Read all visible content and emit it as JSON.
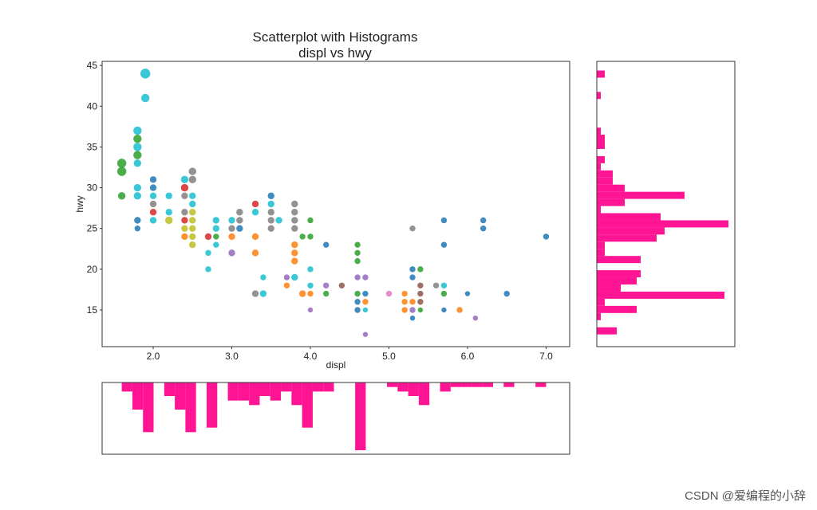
{
  "chart_data": [
    {
      "type": "scatter",
      "title": "Scatterplot with Histograms",
      "subtitle": "displ vs hwy",
      "xlabel": "displ",
      "ylabel": "hwy",
      "xlim": [
        1.35,
        7.3
      ],
      "ylim": [
        10.5,
        45.5
      ],
      "xticks": [
        2.0,
        3.0,
        4.0,
        5.0,
        6.0,
        7.0
      ],
      "yticks": [
        15,
        20,
        25,
        30,
        35,
        40,
        45
      ],
      "grid": false,
      "points": [
        {
          "x": 1.6,
          "y": 33,
          "c": "#2ca02c",
          "s": 9
        },
        {
          "x": 1.6,
          "y": 32,
          "c": "#2ca02c",
          "s": 9
        },
        {
          "x": 1.6,
          "y": 29,
          "c": "#2ca02c",
          "s": 7
        },
        {
          "x": 1.8,
          "y": 37,
          "c": "#17becf",
          "s": 8
        },
        {
          "x": 1.8,
          "y": 36,
          "c": "#2ca02c",
          "s": 8
        },
        {
          "x": 1.8,
          "y": 35,
          "c": "#17becf",
          "s": 8
        },
        {
          "x": 1.8,
          "y": 34,
          "c": "#2ca02c",
          "s": 8
        },
        {
          "x": 1.8,
          "y": 33,
          "c": "#17becf",
          "s": 7
        },
        {
          "x": 1.8,
          "y": 30,
          "c": "#17becf",
          "s": 7
        },
        {
          "x": 1.8,
          "y": 29,
          "c": "#17becf",
          "s": 7
        },
        {
          "x": 1.8,
          "y": 26,
          "c": "#1f77b4",
          "s": 6
        },
        {
          "x": 1.8,
          "y": 25,
          "c": "#1f77b4",
          "s": 5
        },
        {
          "x": 1.9,
          "y": 44,
          "c": "#17becf",
          "s": 10
        },
        {
          "x": 1.9,
          "y": 41,
          "c": "#17becf",
          "s": 8
        },
        {
          "x": 2.0,
          "y": 31,
          "c": "#1f77b4",
          "s": 6
        },
        {
          "x": 2.0,
          "y": 30,
          "c": "#1f77b4",
          "s": 6
        },
        {
          "x": 2.0,
          "y": 29,
          "c": "#17becf",
          "s": 6
        },
        {
          "x": 2.0,
          "y": 28,
          "c": "#7f7f7f",
          "s": 6
        },
        {
          "x": 2.0,
          "y": 27,
          "c": "#d62728",
          "s": 6
        },
        {
          "x": 2.0,
          "y": 26,
          "c": "#17becf",
          "s": 6
        },
        {
          "x": 2.2,
          "y": 29,
          "c": "#17becf",
          "s": 6
        },
        {
          "x": 2.2,
          "y": 27,
          "c": "#17becf",
          "s": 6
        },
        {
          "x": 2.2,
          "y": 26,
          "c": "#bcbd22",
          "s": 7
        },
        {
          "x": 2.4,
          "y": 31,
          "c": "#17becf",
          "s": 7
        },
        {
          "x": 2.4,
          "y": 30,
          "c": "#d62728",
          "s": 7
        },
        {
          "x": 2.4,
          "y": 29,
          "c": "#7f7f7f",
          "s": 6
        },
        {
          "x": 2.4,
          "y": 27,
          "c": "#7f7f7f",
          "s": 6
        },
        {
          "x": 2.4,
          "y": 26,
          "c": "#d62728",
          "s": 6
        },
        {
          "x": 2.4,
          "y": 25,
          "c": "#bcbd22",
          "s": 6
        },
        {
          "x": 2.4,
          "y": 24,
          "c": "#ff7f0e",
          "s": 6
        },
        {
          "x": 2.5,
          "y": 32,
          "c": "#7f7f7f",
          "s": 7
        },
        {
          "x": 2.5,
          "y": 31,
          "c": "#7f7f7f",
          "s": 7
        },
        {
          "x": 2.5,
          "y": 29,
          "c": "#17becf",
          "s": 6
        },
        {
          "x": 2.5,
          "y": 28,
          "c": "#17becf",
          "s": 6
        },
        {
          "x": 2.5,
          "y": 27,
          "c": "#bcbd22",
          "s": 6
        },
        {
          "x": 2.5,
          "y": 26,
          "c": "#bcbd22",
          "s": 6
        },
        {
          "x": 2.5,
          "y": 25,
          "c": "#bcbd22",
          "s": 6
        },
        {
          "x": 2.5,
          "y": 24,
          "c": "#bcbd22",
          "s": 6
        },
        {
          "x": 2.5,
          "y": 23,
          "c": "#bcbd22",
          "s": 6
        },
        {
          "x": 2.7,
          "y": 24,
          "c": "#d62728",
          "s": 6
        },
        {
          "x": 2.7,
          "y": 22,
          "c": "#17becf",
          "s": 5
        },
        {
          "x": 2.7,
          "y": 20,
          "c": "#17becf",
          "s": 5
        },
        {
          "x": 2.8,
          "y": 26,
          "c": "#17becf",
          "s": 6
        },
        {
          "x": 2.8,
          "y": 25,
          "c": "#17becf",
          "s": 6
        },
        {
          "x": 2.8,
          "y": 24,
          "c": "#2ca02c",
          "s": 5
        },
        {
          "x": 2.8,
          "y": 23,
          "c": "#17becf",
          "s": 5
        },
        {
          "x": 3.0,
          "y": 26,
          "c": "#17becf",
          "s": 6
        },
        {
          "x": 3.0,
          "y": 25,
          "c": "#7f7f7f",
          "s": 6
        },
        {
          "x": 3.0,
          "y": 24,
          "c": "#ff7f0e",
          "s": 6
        },
        {
          "x": 3.0,
          "y": 22,
          "c": "#9467bd",
          "s": 6
        },
        {
          "x": 3.1,
          "y": 27,
          "c": "#7f7f7f",
          "s": 6
        },
        {
          "x": 3.1,
          "y": 26,
          "c": "#7f7f7f",
          "s": 6
        },
        {
          "x": 3.1,
          "y": 25,
          "c": "#1f77b4",
          "s": 6
        },
        {
          "x": 3.3,
          "y": 28,
          "c": "#d62728",
          "s": 6
        },
        {
          "x": 3.3,
          "y": 27,
          "c": "#17becf",
          "s": 6
        },
        {
          "x": 3.3,
          "y": 24,
          "c": "#ff7f0e",
          "s": 6
        },
        {
          "x": 3.3,
          "y": 22,
          "c": "#ff7f0e",
          "s": 6
        },
        {
          "x": 3.3,
          "y": 17,
          "c": "#7f7f7f",
          "s": 6
        },
        {
          "x": 3.4,
          "y": 19,
          "c": "#17becf",
          "s": 5
        },
        {
          "x": 3.4,
          "y": 17,
          "c": "#17becf",
          "s": 6
        },
        {
          "x": 3.5,
          "y": 29,
          "c": "#1f77b4",
          "s": 6
        },
        {
          "x": 3.5,
          "y": 28,
          "c": "#17becf",
          "s": 6
        },
        {
          "x": 3.5,
          "y": 27,
          "c": "#7f7f7f",
          "s": 6
        },
        {
          "x": 3.5,
          "y": 26,
          "c": "#7f7f7f",
          "s": 6
        },
        {
          "x": 3.5,
          "y": 25,
          "c": "#7f7f7f",
          "s": 6
        },
        {
          "x": 3.6,
          "y": 26,
          "c": "#17becf",
          "s": 6
        },
        {
          "x": 3.7,
          "y": 19,
          "c": "#9467bd",
          "s": 5
        },
        {
          "x": 3.7,
          "y": 18,
          "c": "#ff7f0e",
          "s": 5
        },
        {
          "x": 3.8,
          "y": 28,
          "c": "#7f7f7f",
          "s": 6
        },
        {
          "x": 3.8,
          "y": 27,
          "c": "#7f7f7f",
          "s": 6
        },
        {
          "x": 3.8,
          "y": 26,
          "c": "#7f7f7f",
          "s": 6
        },
        {
          "x": 3.8,
          "y": 25,
          "c": "#7f7f7f",
          "s": 6
        },
        {
          "x": 3.8,
          "y": 23,
          "c": "#ff7f0e",
          "s": 6
        },
        {
          "x": 3.8,
          "y": 22,
          "c": "#ff7f0e",
          "s": 6
        },
        {
          "x": 3.8,
          "y": 21,
          "c": "#ff7f0e",
          "s": 6
        },
        {
          "x": 3.8,
          "y": 19,
          "c": "#17becf",
          "s": 6
        },
        {
          "x": 3.9,
          "y": 17,
          "c": "#ff7f0e",
          "s": 6
        },
        {
          "x": 3.9,
          "y": 24,
          "c": "#2ca02c",
          "s": 5
        },
        {
          "x": 4.0,
          "y": 26,
          "c": "#2ca02c",
          "s": 5
        },
        {
          "x": 4.0,
          "y": 24,
          "c": "#2ca02c",
          "s": 5
        },
        {
          "x": 4.0,
          "y": 20,
          "c": "#17becf",
          "s": 5
        },
        {
          "x": 4.0,
          "y": 18,
          "c": "#17becf",
          "s": 5
        },
        {
          "x": 4.0,
          "y": 17,
          "c": "#ff7f0e",
          "s": 5
        },
        {
          "x": 4.0,
          "y": 15,
          "c": "#9467bd",
          "s": 4
        },
        {
          "x": 4.2,
          "y": 23,
          "c": "#1f77b4",
          "s": 5
        },
        {
          "x": 4.2,
          "y": 18,
          "c": "#9467bd",
          "s": 5
        },
        {
          "x": 4.2,
          "y": 17,
          "c": "#2ca02c",
          "s": 5
        },
        {
          "x": 4.4,
          "y": 18,
          "c": "#8c564b",
          "s": 5
        },
        {
          "x": 4.6,
          "y": 23,
          "c": "#2ca02c",
          "s": 5
        },
        {
          "x": 4.6,
          "y": 22,
          "c": "#2ca02c",
          "s": 5
        },
        {
          "x": 4.6,
          "y": 21,
          "c": "#2ca02c",
          "s": 5
        },
        {
          "x": 4.6,
          "y": 19,
          "c": "#9467bd",
          "s": 5
        },
        {
          "x": 4.6,
          "y": 17,
          "c": "#2ca02c",
          "s": 5
        },
        {
          "x": 4.6,
          "y": 16,
          "c": "#1f77b4",
          "s": 5
        },
        {
          "x": 4.6,
          "y": 15,
          "c": "#1f77b4",
          "s": 5
        },
        {
          "x": 4.7,
          "y": 19,
          "c": "#9467bd",
          "s": 5
        },
        {
          "x": 4.7,
          "y": 17,
          "c": "#1f77b4",
          "s": 5
        },
        {
          "x": 4.7,
          "y": 16,
          "c": "#ff7f0e",
          "s": 5
        },
        {
          "x": 4.7,
          "y": 15,
          "c": "#17becf",
          "s": 4
        },
        {
          "x": 4.7,
          "y": 12,
          "c": "#9467bd",
          "s": 4
        },
        {
          "x": 5.0,
          "y": 17,
          "c": "#e377c2",
          "s": 5
        },
        {
          "x": 5.2,
          "y": 17,
          "c": "#ff7f0e",
          "s": 5
        },
        {
          "x": 5.2,
          "y": 16,
          "c": "#ff7f0e",
          "s": 5
        },
        {
          "x": 5.2,
          "y": 15,
          "c": "#ff7f0e",
          "s": 5
        },
        {
          "x": 5.3,
          "y": 25,
          "c": "#7f7f7f",
          "s": 5
        },
        {
          "x": 5.3,
          "y": 20,
          "c": "#1f77b4",
          "s": 5
        },
        {
          "x": 5.3,
          "y": 19,
          "c": "#1f77b4",
          "s": 5
        },
        {
          "x": 5.3,
          "y": 16,
          "c": "#ff7f0e",
          "s": 5
        },
        {
          "x": 5.3,
          "y": 15,
          "c": "#9467bd",
          "s": 5
        },
        {
          "x": 5.3,
          "y": 14,
          "c": "#1f77b4",
          "s": 4
        },
        {
          "x": 5.4,
          "y": 20,
          "c": "#2ca02c",
          "s": 5
        },
        {
          "x": 5.4,
          "y": 18,
          "c": "#8c564b",
          "s": 5
        },
        {
          "x": 5.4,
          "y": 17,
          "c": "#8c564b",
          "s": 5
        },
        {
          "x": 5.4,
          "y": 16,
          "c": "#8c564b",
          "s": 5
        },
        {
          "x": 5.4,
          "y": 15,
          "c": "#2ca02c",
          "s": 4
        },
        {
          "x": 5.6,
          "y": 18,
          "c": "#7f7f7f",
          "s": 5
        },
        {
          "x": 5.7,
          "y": 26,
          "c": "#1f77b4",
          "s": 5
        },
        {
          "x": 5.7,
          "y": 23,
          "c": "#1f77b4",
          "s": 5
        },
        {
          "x": 5.7,
          "y": 18,
          "c": "#17becf",
          "s": 5
        },
        {
          "x": 5.7,
          "y": 17,
          "c": "#2ca02c",
          "s": 5
        },
        {
          "x": 5.7,
          "y": 15,
          "c": "#1f77b4",
          "s": 4
        },
        {
          "x": 5.9,
          "y": 15,
          "c": "#ff7f0e",
          "s": 5
        },
        {
          "x": 6.0,
          "y": 17,
          "c": "#1f77b4",
          "s": 4
        },
        {
          "x": 6.1,
          "y": 14,
          "c": "#9467bd",
          "s": 4
        },
        {
          "x": 6.2,
          "y": 26,
          "c": "#1f77b4",
          "s": 5
        },
        {
          "x": 6.2,
          "y": 25,
          "c": "#1f77b4",
          "s": 5
        },
        {
          "x": 6.5,
          "y": 17,
          "c": "#1f77b4",
          "s": 5
        },
        {
          "x": 7.0,
          "y": 24,
          "c": "#1f77b4",
          "s": 5
        }
      ]
    },
    {
      "type": "histogram",
      "orientation": "horizontal",
      "axis": "hwy",
      "color": "#ff1493",
      "bin_width": 0.875,
      "bins": [
        {
          "start": 12.0,
          "count": 5
        },
        {
          "start": 12.875,
          "count": 0
        },
        {
          "start": 13.75,
          "count": 1
        },
        {
          "start": 14.625,
          "count": 10
        },
        {
          "start": 15.5,
          "count": 2
        },
        {
          "start": 16.375,
          "count": 32
        },
        {
          "start": 17.25,
          "count": 6
        },
        {
          "start": 18.125,
          "count": 10
        },
        {
          "start": 19.0,
          "count": 11
        },
        {
          "start": 19.875,
          "count": 0
        },
        {
          "start": 20.75,
          "count": 11
        },
        {
          "start": 21.625,
          "count": 2
        },
        {
          "start": 22.5,
          "count": 2
        },
        {
          "start": 23.375,
          "count": 15
        },
        {
          "start": 24.25,
          "count": 17
        },
        {
          "start": 25.125,
          "count": 33
        },
        {
          "start": 26.0,
          "count": 16
        },
        {
          "start": 26.875,
          "count": 1
        },
        {
          "start": 27.75,
          "count": 7
        },
        {
          "start": 28.625,
          "count": 22
        },
        {
          "start": 29.5,
          "count": 7
        },
        {
          "start": 30.375,
          "count": 4
        },
        {
          "start": 31.25,
          "count": 4
        },
        {
          "start": 32.125,
          "count": 1
        },
        {
          "start": 33.0,
          "count": 2
        },
        {
          "start": 33.875,
          "count": 0
        },
        {
          "start": 34.75,
          "count": 2
        },
        {
          "start": 35.625,
          "count": 2
        },
        {
          "start": 36.5,
          "count": 1
        },
        {
          "start": 37.375,
          "count": 0
        },
        {
          "start": 38.25,
          "count": 0
        },
        {
          "start": 39.125,
          "count": 0
        },
        {
          "start": 40.0,
          "count": 0
        },
        {
          "start": 40.875,
          "count": 1
        },
        {
          "start": 41.75,
          "count": 0
        },
        {
          "start": 42.625,
          "count": 0
        },
        {
          "start": 43.5,
          "count": 2
        }
      ]
    },
    {
      "type": "histogram",
      "orientation": "vertical",
      "inverted": true,
      "axis": "displ",
      "color": "#ff1493",
      "bin_width": 0.135,
      "bins": [
        {
          "start": 1.6,
          "count": 2
        },
        {
          "start": 1.735,
          "count": 6
        },
        {
          "start": 1.87,
          "count": 11
        },
        {
          "start": 2.005,
          "count": 0
        },
        {
          "start": 2.14,
          "count": 3
        },
        {
          "start": 2.275,
          "count": 6
        },
        {
          "start": 2.41,
          "count": 11
        },
        {
          "start": 2.545,
          "count": 0
        },
        {
          "start": 2.68,
          "count": 10
        },
        {
          "start": 2.815,
          "count": 0
        },
        {
          "start": 2.95,
          "count": 4
        },
        {
          "start": 3.085,
          "count": 4
        },
        {
          "start": 3.22,
          "count": 5
        },
        {
          "start": 3.355,
          "count": 3
        },
        {
          "start": 3.49,
          "count": 4
        },
        {
          "start": 3.625,
          "count": 2
        },
        {
          "start": 3.76,
          "count": 5
        },
        {
          "start": 3.895,
          "count": 10
        },
        {
          "start": 4.03,
          "count": 2
        },
        {
          "start": 4.165,
          "count": 2
        },
        {
          "start": 4.3,
          "count": 0
        },
        {
          "start": 4.435,
          "count": 0
        },
        {
          "start": 4.57,
          "count": 15
        },
        {
          "start": 4.705,
          "count": 0
        },
        {
          "start": 4.84,
          "count": 0
        },
        {
          "start": 4.975,
          "count": 1
        },
        {
          "start": 5.11,
          "count": 2
        },
        {
          "start": 5.245,
          "count": 3
        },
        {
          "start": 5.38,
          "count": 5
        },
        {
          "start": 5.515,
          "count": 0
        },
        {
          "start": 5.65,
          "count": 2
        },
        {
          "start": 5.785,
          "count": 1
        },
        {
          "start": 5.92,
          "count": 1
        },
        {
          "start": 6.055,
          "count": 1
        },
        {
          "start": 6.19,
          "count": 1
        },
        {
          "start": 6.325,
          "count": 0
        },
        {
          "start": 6.46,
          "count": 1
        },
        {
          "start": 6.595,
          "count": 0
        },
        {
          "start": 6.73,
          "count": 0
        },
        {
          "start": 6.865,
          "count": 1
        }
      ]
    }
  ],
  "watermark": "CSDN @爱编程的小辞"
}
